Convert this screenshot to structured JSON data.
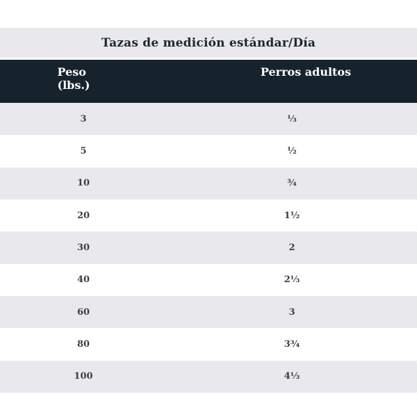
{
  "table": {
    "title": "Tazas de medición estándar/Día",
    "header": {
      "col1_line1": "Peso",
      "col1_line2": "(lbs.)",
      "col2": "Perros adultos"
    },
    "rows": [
      {
        "peso": "3",
        "tazas": "⅓"
      },
      {
        "peso": "5",
        "tazas": "½"
      },
      {
        "peso": "10",
        "tazas": "¾"
      },
      {
        "peso": "20",
        "tazas": "1½"
      },
      {
        "peso": "30",
        "tazas": "2"
      },
      {
        "peso": "40",
        "tazas": "2⅓"
      },
      {
        "peso": "60",
        "tazas": "3"
      },
      {
        "peso": "80",
        "tazas": "3¾"
      },
      {
        "peso": "100",
        "tazas": "4⅓"
      }
    ],
    "colors": {
      "header_bg": "#17232c",
      "header_text": "#ffffff",
      "title_band_bg": "#e9e9ed",
      "title_text": "#1d2730",
      "stripe_bg": "#e9e9ed",
      "row_bg": "#ffffff",
      "cell_text": "#3d3d45",
      "page_bg": "#ffffff"
    }
  },
  "chart_data": {
    "type": "table",
    "title": "Tazas de medición estándar/Día",
    "columns": [
      "Peso (lbs.)",
      "Perros adultos"
    ],
    "rows": [
      [
        "3",
        "⅓"
      ],
      [
        "5",
        "½"
      ],
      [
        "10",
        "¾"
      ],
      [
        "20",
        "1½"
      ],
      [
        "30",
        "2"
      ],
      [
        "40",
        "2⅓"
      ],
      [
        "60",
        "3"
      ],
      [
        "80",
        "3¾"
      ],
      [
        "100",
        "4⅓"
      ]
    ],
    "peso_lbs": [
      3,
      5,
      10,
      20,
      30,
      40,
      60,
      80,
      100
    ],
    "tazas_por_dia_decimal": [
      0.33,
      0.5,
      0.75,
      1.5,
      2,
      2.33,
      3,
      3.75,
      4.33
    ],
    "layout": {
      "stripe_pattern": "odd rows shaded starting with first data row",
      "col1_width_pct": 40,
      "col2_width_pct": 60
    }
  }
}
